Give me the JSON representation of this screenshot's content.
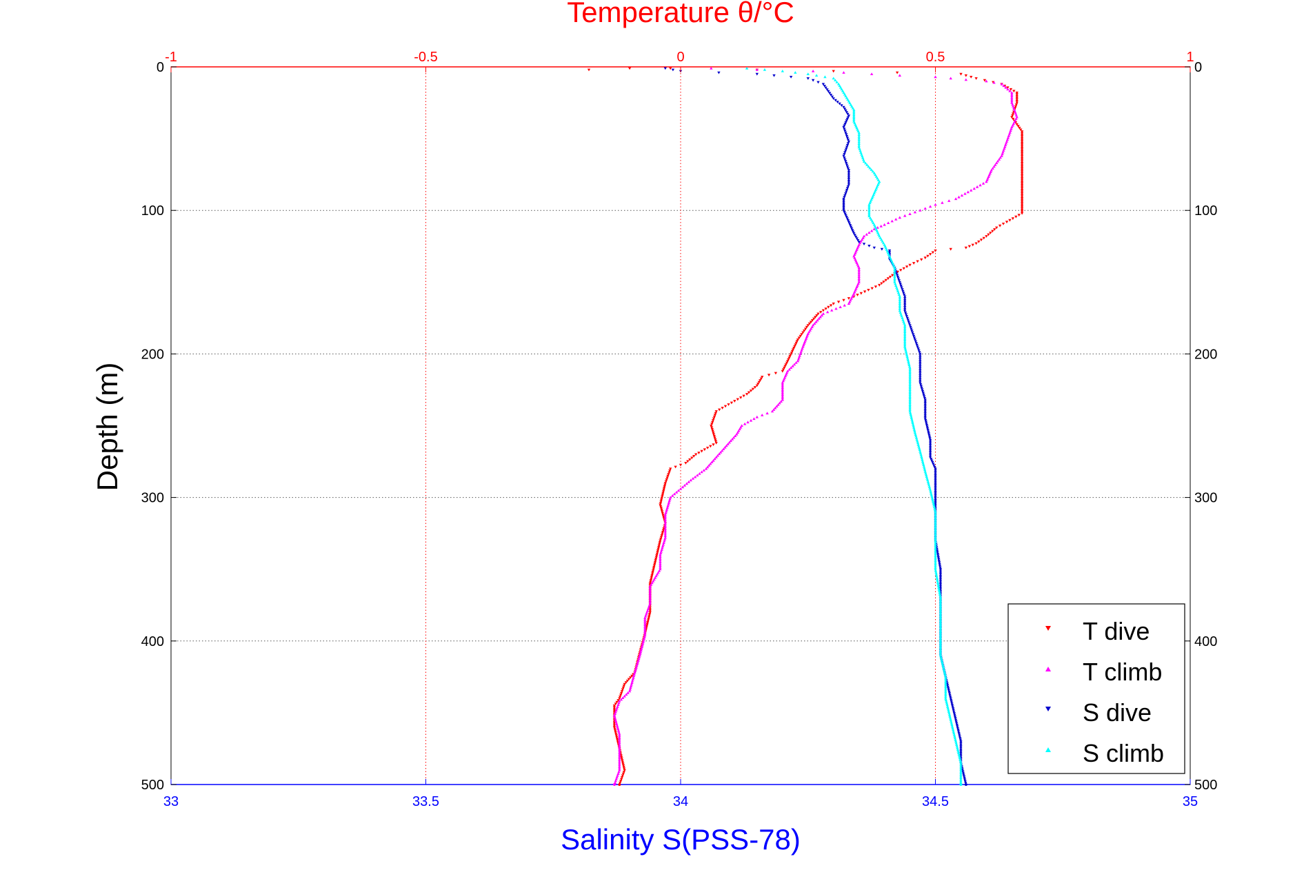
{
  "chart_data": {
    "type": "scatter",
    "title": "Temperature θ/°C",
    "xlabel": "Salinity S(PSS-78)",
    "ylabel": "Depth (m)",
    "top_axis": {
      "label": "Temperature θ/°C",
      "range": [
        -1,
        1
      ],
      "ticks": [
        "-1",
        "-0.5",
        "0",
        "0.5",
        "1"
      ],
      "color": "#ff0000"
    },
    "bottom_axis": {
      "label": "Salinity S(PSS-78)",
      "range": [
        33,
        35
      ],
      "ticks": [
        "33",
        "33.5",
        "34",
        "34.5",
        "35"
      ],
      "color": "#0000ff"
    },
    "y_axis": {
      "range": [
        0,
        500
      ],
      "reversed": true,
      "ticks": [
        "0",
        "100",
        "200",
        "300",
        "400",
        "500"
      ]
    },
    "grid": true,
    "legend_position": "bottom-right",
    "series": [
      {
        "name": "T dive",
        "axis": "temperature",
        "marker": "triangle-down",
        "color": "#ff0000",
        "points": [
          [
            -0.18,
            2
          ],
          [
            -0.1,
            1
          ],
          [
            -0.02,
            1
          ],
          [
            0.15,
            2
          ],
          [
            0.3,
            3
          ],
          [
            0.55,
            5
          ],
          [
            0.58,
            8
          ],
          [
            0.63,
            12
          ],
          [
            0.66,
            18
          ],
          [
            0.66,
            25
          ],
          [
            0.65,
            35
          ],
          [
            0.67,
            45
          ],
          [
            0.67,
            60
          ],
          [
            0.67,
            80
          ],
          [
            0.67,
            95
          ],
          [
            0.67,
            102
          ],
          [
            0.64,
            108
          ],
          [
            0.62,
            112
          ],
          [
            0.6,
            118
          ],
          [
            0.58,
            123
          ],
          [
            0.56,
            126
          ],
          [
            0.5,
            128
          ],
          [
            0.48,
            133
          ],
          [
            0.45,
            138
          ],
          [
            0.42,
            144
          ],
          [
            0.39,
            152
          ],
          [
            0.34,
            160
          ],
          [
            0.3,
            165
          ],
          [
            0.27,
            172
          ],
          [
            0.25,
            180
          ],
          [
            0.23,
            190
          ],
          [
            0.21,
            205
          ],
          [
            0.2,
            212
          ],
          [
            0.16,
            216
          ],
          [
            0.15,
            222
          ],
          [
            0.13,
            228
          ],
          [
            0.1,
            234
          ],
          [
            0.07,
            240
          ],
          [
            0.06,
            250
          ],
          [
            0.07,
            262
          ],
          [
            0.03,
            270
          ],
          [
            0.01,
            276
          ],
          [
            -0.02,
            280
          ],
          [
            -0.03,
            290
          ],
          [
            -0.04,
            305
          ],
          [
            -0.03,
            318
          ],
          [
            -0.04,
            330
          ],
          [
            -0.05,
            345
          ],
          [
            -0.06,
            360
          ],
          [
            -0.06,
            380
          ],
          [
            -0.07,
            395
          ],
          [
            -0.08,
            408
          ],
          [
            -0.09,
            422
          ],
          [
            -0.11,
            430
          ],
          [
            -0.12,
            440
          ],
          [
            -0.13,
            445
          ],
          [
            -0.13,
            460
          ],
          [
            -0.12,
            475
          ],
          [
            -0.11,
            490
          ],
          [
            -0.12,
            500
          ]
        ]
      },
      {
        "name": "T climb",
        "axis": "temperature",
        "marker": "triangle-up",
        "color": "#ff00ff",
        "points": [
          [
            0.06,
            1
          ],
          [
            0.15,
            2
          ],
          [
            0.26,
            3
          ],
          [
            0.32,
            4
          ],
          [
            0.43,
            6
          ],
          [
            0.5,
            7
          ],
          [
            0.56,
            9
          ],
          [
            0.6,
            10
          ],
          [
            0.63,
            12
          ],
          [
            0.65,
            18
          ],
          [
            0.65,
            25
          ],
          [
            0.66,
            35
          ],
          [
            0.65,
            42
          ],
          [
            0.64,
            52
          ],
          [
            0.63,
            62
          ],
          [
            0.61,
            72
          ],
          [
            0.6,
            80
          ],
          [
            0.57,
            86
          ],
          [
            0.54,
            92
          ],
          [
            0.5,
            96
          ],
          [
            0.47,
            100
          ],
          [
            0.43,
            105
          ],
          [
            0.4,
            110
          ],
          [
            0.38,
            113
          ],
          [
            0.36,
            118
          ],
          [
            0.35,
            124
          ],
          [
            0.34,
            132
          ],
          [
            0.35,
            140
          ],
          [
            0.35,
            150
          ],
          [
            0.34,
            158
          ],
          [
            0.33,
            165
          ],
          [
            0.28,
            172
          ],
          [
            0.26,
            180
          ],
          [
            0.25,
            186
          ],
          [
            0.24,
            195
          ],
          [
            0.23,
            205
          ],
          [
            0.21,
            212
          ],
          [
            0.2,
            220
          ],
          [
            0.2,
            232
          ],
          [
            0.18,
            240
          ],
          [
            0.15,
            244
          ],
          [
            0.12,
            250
          ],
          [
            0.11,
            256
          ],
          [
            0.09,
            264
          ],
          [
            0.07,
            272
          ],
          [
            0.05,
            280
          ],
          [
            0.02,
            288
          ],
          [
            0.0,
            294
          ],
          [
            -0.02,
            300
          ],
          [
            -0.03,
            312
          ],
          [
            -0.03,
            328
          ],
          [
            -0.04,
            340
          ],
          [
            -0.04,
            350
          ],
          [
            -0.06,
            362
          ],
          [
            -0.06,
            374
          ],
          [
            -0.07,
            384
          ],
          [
            -0.07,
            396
          ],
          [
            -0.08,
            410
          ],
          [
            -0.09,
            422
          ],
          [
            -0.1,
            435
          ],
          [
            -0.12,
            442
          ],
          [
            -0.13,
            452
          ],
          [
            -0.12,
            465
          ],
          [
            -0.12,
            478
          ],
          [
            -0.12,
            490
          ],
          [
            -0.13,
            500
          ]
        ]
      },
      {
        "name": "S dive",
        "axis": "salinity",
        "marker": "triangle-down",
        "color": "#0000cc",
        "points": [
          [
            33.97,
            1
          ],
          [
            34.0,
            3
          ],
          [
            34.15,
            5
          ],
          [
            34.25,
            8
          ],
          [
            34.28,
            12
          ],
          [
            34.29,
            17
          ],
          [
            34.3,
            22
          ],
          [
            34.32,
            28
          ],
          [
            34.33,
            34
          ],
          [
            34.32,
            42
          ],
          [
            34.33,
            52
          ],
          [
            34.32,
            62
          ],
          [
            34.33,
            72
          ],
          [
            34.33,
            82
          ],
          [
            34.32,
            92
          ],
          [
            34.32,
            100
          ],
          [
            34.33,
            108
          ],
          [
            34.34,
            116
          ],
          [
            34.35,
            122
          ],
          [
            34.38,
            126
          ],
          [
            34.41,
            128
          ],
          [
            34.41,
            134
          ],
          [
            34.42,
            140
          ],
          [
            34.43,
            150
          ],
          [
            34.44,
            160
          ],
          [
            34.44,
            170
          ],
          [
            34.45,
            180
          ],
          [
            34.46,
            190
          ],
          [
            34.47,
            200
          ],
          [
            34.47,
            210
          ],
          [
            34.47,
            220
          ],
          [
            34.48,
            232
          ],
          [
            34.48,
            245
          ],
          [
            34.49,
            260
          ],
          [
            34.49,
            272
          ],
          [
            34.5,
            280
          ],
          [
            34.5,
            295
          ],
          [
            34.5,
            310
          ],
          [
            34.5,
            330
          ],
          [
            34.51,
            350
          ],
          [
            34.51,
            370
          ],
          [
            34.51,
            390
          ],
          [
            34.51,
            410
          ],
          [
            34.52,
            425
          ],
          [
            34.53,
            440
          ],
          [
            34.54,
            455
          ],
          [
            34.55,
            470
          ],
          [
            34.55,
            485
          ],
          [
            34.56,
            500
          ]
        ]
      },
      {
        "name": "S climb",
        "axis": "salinity",
        "marker": "triangle-up",
        "color": "#00ffff",
        "points": [
          [
            34.13,
            1
          ],
          [
            34.2,
            3
          ],
          [
            34.25,
            5
          ],
          [
            34.3,
            8
          ],
          [
            34.31,
            12
          ],
          [
            34.32,
            18
          ],
          [
            34.33,
            24
          ],
          [
            34.34,
            30
          ],
          [
            34.34,
            38
          ],
          [
            34.35,
            46
          ],
          [
            34.35,
            56
          ],
          [
            34.36,
            66
          ],
          [
            34.38,
            74
          ],
          [
            34.39,
            80
          ],
          [
            34.38,
            88
          ],
          [
            34.37,
            96
          ],
          [
            34.37,
            104
          ],
          [
            34.38,
            110
          ],
          [
            34.39,
            118
          ],
          [
            34.4,
            124
          ],
          [
            34.41,
            132
          ],
          [
            34.42,
            140
          ],
          [
            34.42,
            150
          ],
          [
            34.43,
            160
          ],
          [
            34.43,
            170
          ],
          [
            34.44,
            180
          ],
          [
            34.44,
            195
          ],
          [
            34.45,
            210
          ],
          [
            34.45,
            225
          ],
          [
            34.45,
            240
          ],
          [
            34.46,
            255
          ],
          [
            34.47,
            268
          ],
          [
            34.48,
            282
          ],
          [
            34.49,
            295
          ],
          [
            34.5,
            310
          ],
          [
            34.5,
            330
          ],
          [
            34.5,
            350
          ],
          [
            34.51,
            370
          ],
          [
            34.51,
            390
          ],
          [
            34.51,
            410
          ],
          [
            34.52,
            425
          ],
          [
            34.52,
            440
          ],
          [
            34.53,
            455
          ],
          [
            34.54,
            470
          ],
          [
            34.55,
            485
          ],
          [
            34.55,
            500
          ]
        ]
      }
    ]
  }
}
